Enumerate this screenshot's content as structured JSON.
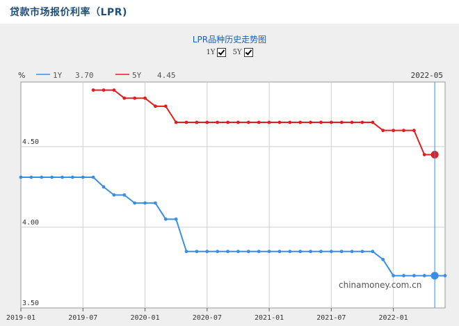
{
  "page": {
    "title": "贷款市场报价利率（LPR)"
  },
  "chart": {
    "title": "LPR品种历史走势图",
    "toggles": [
      {
        "label": "1Y",
        "checked": true
      },
      {
        "label": "5Y",
        "checked": true
      }
    ],
    "unit_label": "%",
    "cursor_date": "2022-05",
    "watermark": "chinamoney.com.cn"
  },
  "chart_data": {
    "type": "line",
    "ylim": [
      3.5,
      4.9
    ],
    "yticks": [
      "4.50",
      "4.00",
      "3.50"
    ],
    "ytick_values": [
      4.5,
      4.0,
      3.5
    ],
    "xlabels": [
      "2019-01",
      "2019-07",
      "2020-01",
      "2020-07",
      "2021-01",
      "2021-07",
      "2022-01"
    ],
    "x_start": "2019-01",
    "x_end": "2022-06",
    "series": [
      {
        "name": "1Y",
        "color": "#3a8ee6",
        "current_value": "3.70",
        "start": "2019-01",
        "values": [
          4.31,
          4.31,
          4.31,
          4.31,
          4.31,
          4.31,
          4.31,
          4.31,
          4.25,
          4.2,
          4.2,
          4.15,
          4.15,
          4.15,
          4.05,
          4.05,
          3.85,
          3.85,
          3.85,
          3.85,
          3.85,
          3.85,
          3.85,
          3.85,
          3.85,
          3.85,
          3.85,
          3.85,
          3.85,
          3.85,
          3.85,
          3.85,
          3.85,
          3.85,
          3.85,
          3.8,
          3.7,
          3.7,
          3.7,
          3.7,
          3.7,
          3.7
        ]
      },
      {
        "name": "5Y",
        "color": "#e11d1d",
        "current_value": "4.45",
        "start": "2019-08",
        "values": [
          4.85,
          4.85,
          4.85,
          4.8,
          4.8,
          4.8,
          4.75,
          4.75,
          4.65,
          4.65,
          4.65,
          4.65,
          4.65,
          4.65,
          4.65,
          4.65,
          4.65,
          4.65,
          4.65,
          4.65,
          4.65,
          4.65,
          4.65,
          4.65,
          4.65,
          4.65,
          4.65,
          4.65,
          4.6,
          4.6,
          4.6,
          4.6,
          4.45,
          4.45
        ]
      }
    ]
  }
}
